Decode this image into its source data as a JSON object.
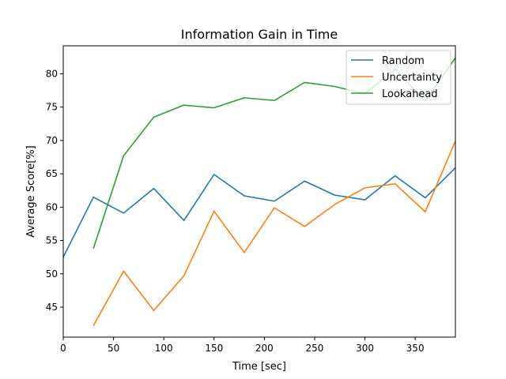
{
  "chart_data": {
    "type": "line",
    "title": "Information Gain in Time",
    "xlabel": "Time [sec]",
    "ylabel": "Average Score[%]",
    "xlim": [
      0,
      390
    ],
    "ylim": [
      40.5,
      84.2
    ],
    "xticks": [
      0,
      50,
      100,
      150,
      200,
      250,
      300,
      350
    ],
    "yticks": [
      45,
      50,
      55,
      60,
      65,
      70,
      75,
      80
    ],
    "grid": false,
    "legend": "top-right",
    "series": [
      {
        "name": "Random",
        "color": "#1f77b4",
        "x": [
          0,
          30,
          60,
          90,
          120,
          150,
          180,
          210,
          240,
          270,
          300,
          330,
          360,
          390
        ],
        "values": [
          52.5,
          61.5,
          59.1,
          62.8,
          58.0,
          64.9,
          61.7,
          60.9,
          63.9,
          61.8,
          61.1,
          64.7,
          61.4,
          65.9
        ]
      },
      {
        "name": "Uncertainty",
        "color": "#ff7f0e",
        "x": [
          30,
          60,
          90,
          120,
          150,
          180,
          210,
          240,
          270,
          300,
          330,
          360,
          390
        ],
        "values": [
          42.2,
          50.4,
          44.5,
          49.7,
          59.4,
          53.2,
          59.9,
          57.1,
          60.4,
          62.9,
          63.5,
          59.3,
          69.9
        ]
      },
      {
        "name": "Lookahead",
        "color": "#2ca02c",
        "x": [
          30,
          60,
          90,
          120,
          150,
          180,
          210,
          240,
          270,
          300,
          330,
          360,
          390
        ],
        "values": [
          53.8,
          67.7,
          73.5,
          75.3,
          74.9,
          76.4,
          76.0,
          78.7,
          78.1,
          77.0,
          80.7,
          75.9,
          82.4
        ]
      }
    ]
  }
}
